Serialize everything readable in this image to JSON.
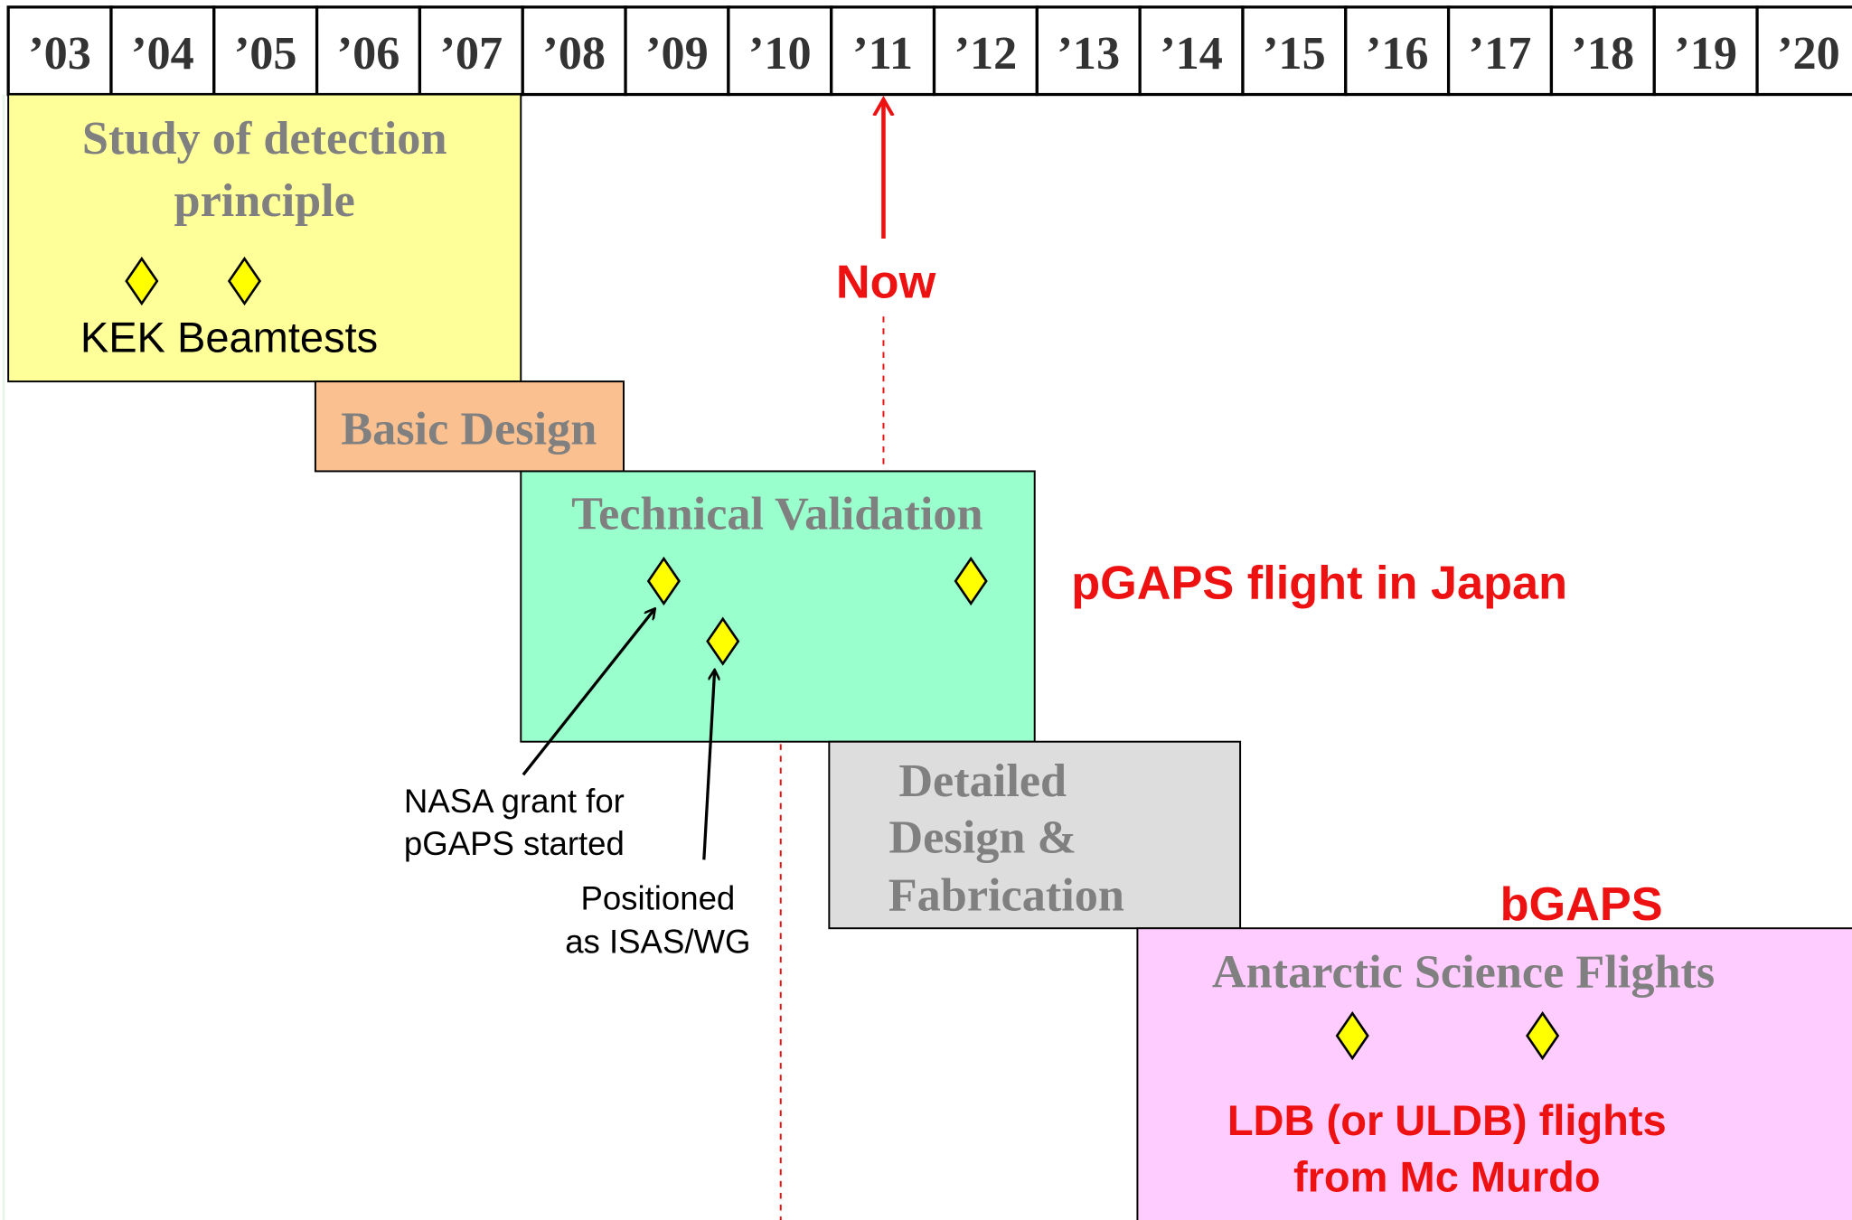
{
  "years": [
    "’03",
    "’04",
    "’05",
    "’06",
    "’07",
    "’08",
    "’09",
    "’10",
    "’11",
    "’12",
    "’13",
    "’14",
    "’15",
    "’16",
    "’17",
    "’18",
    "’19",
    "’20"
  ],
  "phases": {
    "study": {
      "title": [
        "Study of detection",
        "principle"
      ],
      "note": "KEK Beamtests"
    },
    "basic": {
      "title": "Basic Design"
    },
    "technical": {
      "title": "Technical Validation"
    },
    "detailed": {
      "title": [
        "Detailed",
        "Design &",
        "Fabrication"
      ]
    },
    "antarctic": {
      "title": "Antarctic Science Flights"
    }
  },
  "now": "Now",
  "pgaps": "pGAPS flight in Japan",
  "bgaps": "bGAPS",
  "ldb": [
    "LDB (or ULDB) flights",
    "from Mc Murdo"
  ],
  "nasa": [
    "NASA grant for",
    "pGAPS started"
  ],
  "isas": [
    "Positioned",
    "as ISAS/WG"
  ]
}
